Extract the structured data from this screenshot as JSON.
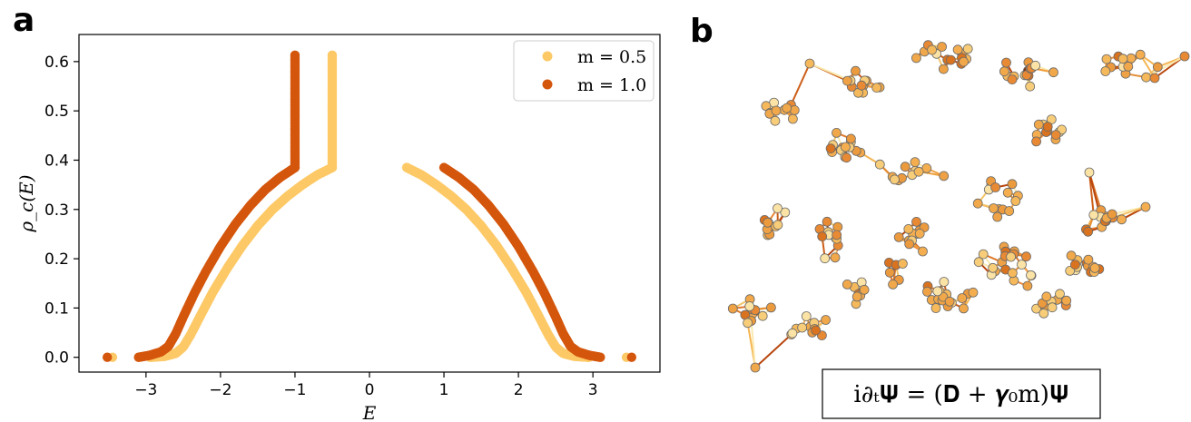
{
  "panel_a_letter": "a",
  "panel_b_letter": "b",
  "equation": "i∂ₜ𝚿 = (𝐃 + 𝜸₀m)𝚿",
  "chart_data": {
    "type": "scatter",
    "title": "",
    "xlabel": "E",
    "ylabel": "ρ_c(E)",
    "xlim": [
      -3.9,
      3.9
    ],
    "ylim": [
      -0.03,
      0.655
    ],
    "xticks": [
      -3,
      -2,
      -1,
      0,
      1,
      2,
      3
    ],
    "xtick_labels": [
      "−3",
      "−2",
      "−1",
      "0",
      "1",
      "2",
      "3"
    ],
    "yticks": [
      0.0,
      0.1,
      0.2,
      0.3,
      0.4,
      0.5,
      0.6
    ],
    "ytick_labels": [
      "0.0",
      "0.1",
      "0.2",
      "0.3",
      "0.4",
      "0.5",
      "0.6"
    ],
    "grid": false,
    "legend_position": "top-right",
    "series": [
      {
        "name": "m = 0.5",
        "color": "#fdc967",
        "edge": {
          "E": 0.5,
          "rho": 0.385
        },
        "vertical_max": 0.615,
        "outliers": [
          -3.45,
          3.45
        ],
        "curve": [
          [
            0.5,
            0.385
          ],
          [
            0.7,
            0.37
          ],
          [
            0.9,
            0.35
          ],
          [
            1.1,
            0.327
          ],
          [
            1.3,
            0.3
          ],
          [
            1.5,
            0.267
          ],
          [
            1.7,
            0.228
          ],
          [
            1.9,
            0.183
          ],
          [
            2.1,
            0.133
          ],
          [
            2.25,
            0.09
          ],
          [
            2.4,
            0.046
          ],
          [
            2.5,
            0.021
          ],
          [
            2.6,
            0.008
          ],
          [
            2.75,
            0.002
          ],
          [
            2.95,
            0.0
          ]
        ]
      },
      {
        "name": "m = 1.0",
        "color": "#d4560c",
        "edge": {
          "E": 1.0,
          "rho": 0.385
        },
        "vertical_max": 0.615,
        "outliers": [
          -3.52,
          3.52
        ],
        "curve": [
          [
            1.0,
            0.385
          ],
          [
            1.2,
            0.365
          ],
          [
            1.4,
            0.34
          ],
          [
            1.6,
            0.308
          ],
          [
            1.8,
            0.27
          ],
          [
            2.0,
            0.225
          ],
          [
            2.2,
            0.173
          ],
          [
            2.35,
            0.13
          ],
          [
            2.5,
            0.082
          ],
          [
            2.6,
            0.048
          ],
          [
            2.7,
            0.022
          ],
          [
            2.8,
            0.011
          ],
          [
            2.95,
            0.004
          ],
          [
            3.1,
            0.0
          ]
        ]
      }
    ]
  }
}
